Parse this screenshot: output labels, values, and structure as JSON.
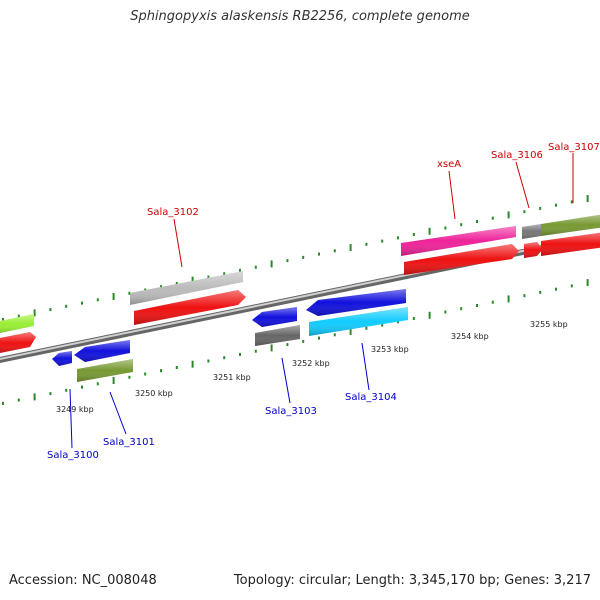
{
  "title": "Sphingopyxis alaskensis RB2256, complete genome",
  "footer": {
    "accession": "Accession: NC_008048",
    "stats": "Topology: circular; Length: 3,345,170 bp; Genes: 3,217"
  },
  "colors": {
    "forward_label": "#cc0000",
    "reverse_label": "#0000cc",
    "tick": "#2a8a2a",
    "backbone": "#888888"
  },
  "scale_labels": [
    "3249 kbp",
    "3250 kbp",
    "3251 kbp",
    "3252 kbp",
    "3253 kbp",
    "3254 kbp",
    "3255 kbp"
  ],
  "gene_labels": {
    "sala_3100": "Sala_3100",
    "sala_3101": "Sala_3101",
    "sala_3102": "Sala_3102",
    "sala_3103": "Sala_3103",
    "sala_3104": "Sala_3104",
    "xsea": "xseA",
    "sala_3106": "Sala_3106",
    "sala_3107": "Sala_3107"
  }
}
